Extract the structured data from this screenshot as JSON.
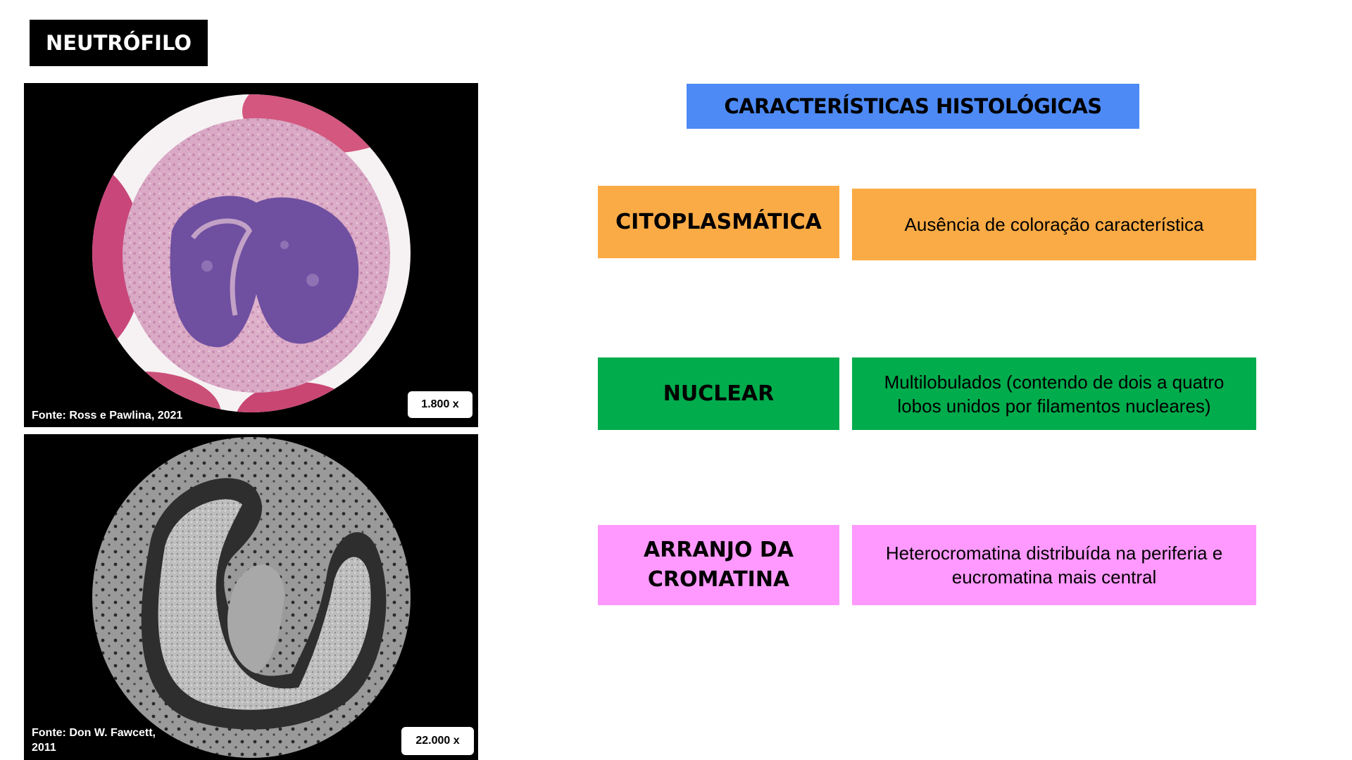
{
  "title": "NEUTRÓFILO",
  "images": [
    {
      "credit": "Fonte: Ross e Pawlina, 2021",
      "magnification": "1.800 x"
    },
    {
      "credit_line1": "Fonte: Don W. Fawcett,",
      "credit_line2": "2011",
      "magnification": "22.000 x"
    }
  ],
  "header": "CARACTERÍSTICAS HISTOLÓGICAS",
  "rows": [
    {
      "category": "CITOPLASMÁTICA",
      "description": "Ausência de coloração característica",
      "color": "#fbab45"
    },
    {
      "category": "NUCLEAR",
      "description_line1": "Multilobulados (contendo de dois a quatro",
      "description_line2": "lobos unidos por filamentos nucleares)",
      "color": "#00ac4c"
    },
    {
      "category_line1": "ARRANJO DA",
      "category_line2": "CROMATINA",
      "description_line1": "Heterocromatina distribuída na periferia e",
      "description_line2": "eucromatina mais central",
      "color": "#ff99ff"
    }
  ]
}
